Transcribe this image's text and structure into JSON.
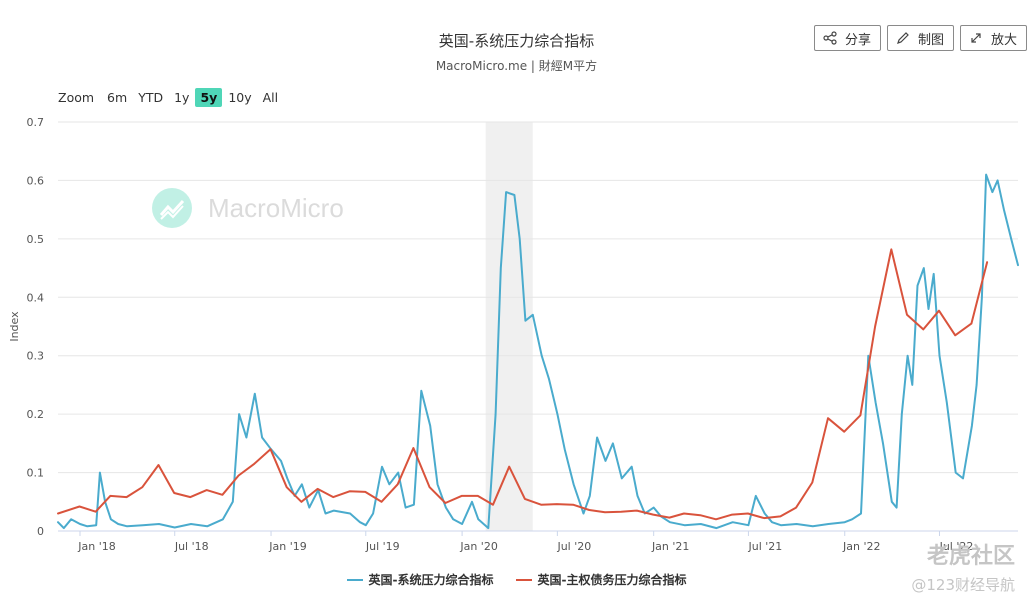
{
  "header": {
    "title": "英国-系统压力综合指标",
    "subtitle": "MacroMicro.me | 財經M平方"
  },
  "toolbar": {
    "share_label": "分享",
    "draw_label": "制图",
    "enlarge_label": "放大"
  },
  "zoom": {
    "label": "Zoom",
    "options": [
      "6m",
      "YTD",
      "1y",
      "5y",
      "10y",
      "All"
    ],
    "selected": "5y"
  },
  "watermark": {
    "text": "MacroMicro",
    "corner_top": "老虎社区",
    "corner_bottom": "@123财经导航"
  },
  "colors": {
    "series1": "#4aabcd",
    "series2": "#d9533c",
    "recession_band": "#e6e6e6",
    "zoom_active": "#4fd6b7"
  },
  "chart_data": {
    "type": "line",
    "title": "英国-系统压力综合指标",
    "ylabel": "Index",
    "xlabel": "",
    "ylim": [
      0,
      0.7
    ],
    "yticks": [
      0,
      0.1,
      0.2,
      0.3,
      0.4,
      0.5,
      0.6,
      0.7
    ],
    "xlim": [
      "2017-11-20",
      "2022-11-28"
    ],
    "xticks": [
      {
        "date": "2018-01-01",
        "label": "Jan '18"
      },
      {
        "date": "2018-07-01",
        "label": "Jul '18"
      },
      {
        "date": "2019-01-01",
        "label": "Jan '19"
      },
      {
        "date": "2019-07-01",
        "label": "Jul '19"
      },
      {
        "date": "2020-01-01",
        "label": "Jan '20"
      },
      {
        "date": "2020-07-01",
        "label": "Jul '20"
      },
      {
        "date": "2021-01-01",
        "label": "Jan '21"
      },
      {
        "date": "2021-07-01",
        "label": "Jul '21"
      },
      {
        "date": "2022-01-01",
        "label": "Jan '22"
      },
      {
        "date": "2022-07-01",
        "label": "Jul '22"
      }
    ],
    "grid": true,
    "legend": "bottom",
    "shaded_regions": [
      {
        "start": "2020-02-15",
        "end": "2020-05-15"
      }
    ],
    "series": [
      {
        "name": "英国-系统压力综合指标",
        "points": [
          [
            "2017-11-20",
            0.015
          ],
          [
            "2017-12-01",
            0.005
          ],
          [
            "2017-12-15",
            0.02
          ],
          [
            "2018-01-01",
            0.012
          ],
          [
            "2018-01-15",
            0.008
          ],
          [
            "2018-02-01",
            0.01
          ],
          [
            "2018-02-08",
            0.1
          ],
          [
            "2018-02-18",
            0.05
          ],
          [
            "2018-03-01",
            0.02
          ],
          [
            "2018-03-15",
            0.012
          ],
          [
            "2018-04-01",
            0.008
          ],
          [
            "2018-05-01",
            0.01
          ],
          [
            "2018-06-01",
            0.012
          ],
          [
            "2018-07-01",
            0.006
          ],
          [
            "2018-08-01",
            0.012
          ],
          [
            "2018-09-01",
            0.008
          ],
          [
            "2018-10-01",
            0.02
          ],
          [
            "2018-10-20",
            0.05
          ],
          [
            "2018-11-01",
            0.2
          ],
          [
            "2018-11-15",
            0.16
          ],
          [
            "2018-12-01",
            0.235
          ],
          [
            "2018-12-15",
            0.16
          ],
          [
            "2019-01-01",
            0.14
          ],
          [
            "2019-01-20",
            0.12
          ],
          [
            "2019-02-01",
            0.09
          ],
          [
            "2019-02-15",
            0.06
          ],
          [
            "2019-03-01",
            0.08
          ],
          [
            "2019-03-15",
            0.04
          ],
          [
            "2019-04-01",
            0.07
          ],
          [
            "2019-04-15",
            0.03
          ],
          [
            "2019-05-01",
            0.035
          ],
          [
            "2019-06-01",
            0.03
          ],
          [
            "2019-06-20",
            0.015
          ],
          [
            "2019-07-01",
            0.01
          ],
          [
            "2019-07-15",
            0.03
          ],
          [
            "2019-08-01",
            0.11
          ],
          [
            "2019-08-15",
            0.08
          ],
          [
            "2019-09-01",
            0.1
          ],
          [
            "2019-09-15",
            0.04
          ],
          [
            "2019-10-01",
            0.045
          ],
          [
            "2019-10-15",
            0.24
          ],
          [
            "2019-11-01",
            0.18
          ],
          [
            "2019-11-15",
            0.08
          ],
          [
            "2019-12-01",
            0.04
          ],
          [
            "2019-12-15",
            0.02
          ],
          [
            "2020-01-01",
            0.012
          ],
          [
            "2020-01-20",
            0.05
          ],
          [
            "2020-02-01",
            0.02
          ],
          [
            "2020-02-20",
            0.005
          ],
          [
            "2020-03-05",
            0.2
          ],
          [
            "2020-03-15",
            0.45
          ],
          [
            "2020-03-25",
            0.58
          ],
          [
            "2020-04-10",
            0.575
          ],
          [
            "2020-04-20",
            0.5
          ],
          [
            "2020-05-01",
            0.36
          ],
          [
            "2020-05-15",
            0.37
          ],
          [
            "2020-06-01",
            0.3
          ],
          [
            "2020-06-15",
            0.26
          ],
          [
            "2020-07-01",
            0.2
          ],
          [
            "2020-07-15",
            0.14
          ],
          [
            "2020-08-01",
            0.08
          ],
          [
            "2020-08-20",
            0.03
          ],
          [
            "2020-09-01",
            0.06
          ],
          [
            "2020-09-15",
            0.16
          ],
          [
            "2020-10-01",
            0.12
          ],
          [
            "2020-10-15",
            0.15
          ],
          [
            "2020-11-01",
            0.09
          ],
          [
            "2020-11-20",
            0.11
          ],
          [
            "2020-12-01",
            0.06
          ],
          [
            "2020-12-15",
            0.03
          ],
          [
            "2021-01-01",
            0.04
          ],
          [
            "2021-01-15",
            0.025
          ],
          [
            "2021-02-01",
            0.015
          ],
          [
            "2021-03-01",
            0.01
          ],
          [
            "2021-04-01",
            0.012
          ],
          [
            "2021-05-01",
            0.005
          ],
          [
            "2021-06-01",
            0.015
          ],
          [
            "2021-07-01",
            0.01
          ],
          [
            "2021-07-15",
            0.06
          ],
          [
            "2021-08-01",
            0.03
          ],
          [
            "2021-08-15",
            0.015
          ],
          [
            "2021-09-01",
            0.01
          ],
          [
            "2021-10-01",
            0.012
          ],
          [
            "2021-11-01",
            0.008
          ],
          [
            "2021-12-01",
            0.012
          ],
          [
            "2022-01-01",
            0.015
          ],
          [
            "2022-01-15",
            0.02
          ],
          [
            "2022-02-01",
            0.03
          ],
          [
            "2022-02-15",
            0.3
          ],
          [
            "2022-03-01",
            0.22
          ],
          [
            "2022-03-15",
            0.15
          ],
          [
            "2022-04-01",
            0.05
          ],
          [
            "2022-04-10",
            0.04
          ],
          [
            "2022-04-20",
            0.2
          ],
          [
            "2022-05-01",
            0.3
          ],
          [
            "2022-05-10",
            0.25
          ],
          [
            "2022-05-20",
            0.42
          ],
          [
            "2022-06-01",
            0.45
          ],
          [
            "2022-06-10",
            0.38
          ],
          [
            "2022-06-20",
            0.44
          ],
          [
            "2022-07-01",
            0.3
          ],
          [
            "2022-07-15",
            0.22
          ],
          [
            "2022-08-01",
            0.1
          ],
          [
            "2022-08-15",
            0.09
          ],
          [
            "2022-09-01",
            0.18
          ],
          [
            "2022-09-10",
            0.25
          ],
          [
            "2022-09-20",
            0.4
          ],
          [
            "2022-09-28",
            0.61
          ],
          [
            "2022-10-10",
            0.58
          ],
          [
            "2022-10-20",
            0.6
          ],
          [
            "2022-11-01",
            0.55
          ],
          [
            "2022-11-15",
            0.5
          ],
          [
            "2022-11-28",
            0.455
          ]
        ]
      },
      {
        "name": "英国-主权债务压力综合指标",
        "points": [
          [
            "2017-11-20",
            0.03
          ],
          [
            "2017-12-31",
            0.042
          ],
          [
            "2018-01-31",
            0.033
          ],
          [
            "2018-02-28",
            0.06
          ],
          [
            "2018-03-31",
            0.058
          ],
          [
            "2018-04-30",
            0.075
          ],
          [
            "2018-05-31",
            0.113
          ],
          [
            "2018-06-30",
            0.065
          ],
          [
            "2018-07-31",
            0.058
          ],
          [
            "2018-08-31",
            0.07
          ],
          [
            "2018-09-30",
            0.062
          ],
          [
            "2018-10-31",
            0.095
          ],
          [
            "2018-11-30",
            0.115
          ],
          [
            "2018-12-31",
            0.14
          ],
          [
            "2019-01-31",
            0.075
          ],
          [
            "2019-02-28",
            0.05
          ],
          [
            "2019-03-31",
            0.072
          ],
          [
            "2019-04-30",
            0.058
          ],
          [
            "2019-05-31",
            0.068
          ],
          [
            "2019-06-30",
            0.067
          ],
          [
            "2019-07-31",
            0.05
          ],
          [
            "2019-08-31",
            0.08
          ],
          [
            "2019-09-30",
            0.142
          ],
          [
            "2019-10-31",
            0.075
          ],
          [
            "2019-11-30",
            0.048
          ],
          [
            "2019-12-31",
            0.06
          ],
          [
            "2020-01-31",
            0.06
          ],
          [
            "2020-02-29",
            0.045
          ],
          [
            "2020-03-31",
            0.11
          ],
          [
            "2020-04-30",
            0.055
          ],
          [
            "2020-05-31",
            0.045
          ],
          [
            "2020-06-30",
            0.046
          ],
          [
            "2020-07-31",
            0.045
          ],
          [
            "2020-08-31",
            0.036
          ],
          [
            "2020-09-30",
            0.032
          ],
          [
            "2020-10-31",
            0.033
          ],
          [
            "2020-11-30",
            0.035
          ],
          [
            "2020-12-31",
            0.028
          ],
          [
            "2021-01-31",
            0.023
          ],
          [
            "2021-02-28",
            0.03
          ],
          [
            "2021-03-31",
            0.027
          ],
          [
            "2021-04-30",
            0.02
          ],
          [
            "2021-05-31",
            0.028
          ],
          [
            "2021-06-30",
            0.03
          ],
          [
            "2021-07-31",
            0.022
          ],
          [
            "2021-08-31",
            0.025
          ],
          [
            "2021-09-30",
            0.04
          ],
          [
            "2021-10-31",
            0.083
          ],
          [
            "2021-11-30",
            0.193
          ],
          [
            "2021-12-31",
            0.17
          ],
          [
            "2022-01-31",
            0.198
          ],
          [
            "2022-02-28",
            0.35
          ],
          [
            "2022-03-31",
            0.482
          ],
          [
            "2022-04-30",
            0.37
          ],
          [
            "2022-05-31",
            0.345
          ],
          [
            "2022-06-30",
            0.377
          ],
          [
            "2022-07-31",
            0.335
          ],
          [
            "2022-08-31",
            0.355
          ],
          [
            "2022-09-30",
            0.46
          ]
        ]
      }
    ]
  }
}
